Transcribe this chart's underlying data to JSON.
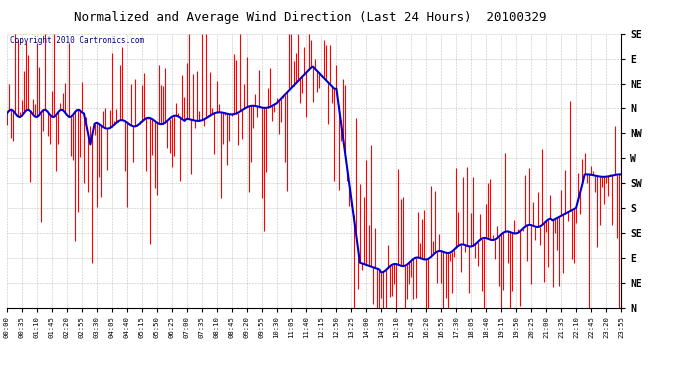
{
  "title": "Normalized and Average Wind Direction (Last 24 Hours)  20100329",
  "copyright": "Copyright 2010 Cartronics.com",
  "background_color": "#ffffff",
  "plot_bg_color": "#ffffff",
  "grid_color": "#999999",
  "red_color": "#ff0000",
  "blue_color": "#0000cc",
  "ytick_labels_top_to_bottom": [
    "SE",
    "E",
    "NE",
    "N",
    "NW",
    "W",
    "SW",
    "S",
    "SE",
    "E",
    "NE",
    "N"
  ],
  "xtick_labels": [
    "00:00",
    "00:35",
    "01:10",
    "01:45",
    "02:20",
    "02:55",
    "03:30",
    "04:05",
    "04:40",
    "05:15",
    "05:50",
    "06:25",
    "07:00",
    "07:35",
    "08:10",
    "08:45",
    "09:20",
    "09:55",
    "10:30",
    "11:05",
    "11:40",
    "12:15",
    "12:50",
    "13:25",
    "14:00",
    "14:35",
    "15:10",
    "15:45",
    "16:20",
    "16:55",
    "17:30",
    "18:05",
    "18:40",
    "19:15",
    "19:50",
    "20:25",
    "21:00",
    "21:35",
    "22:10",
    "22:45",
    "23:20",
    "23:55"
  ],
  "ylim": [
    0,
    11
  ],
  "xlim_minutes": [
    0,
    1435
  ],
  "figsize": [
    6.9,
    3.75
  ],
  "dpi": 100
}
